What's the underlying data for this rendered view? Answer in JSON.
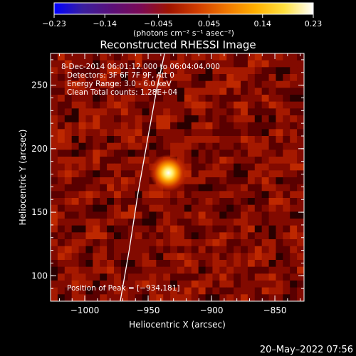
{
  "chart_data": {
    "type": "heatmap",
    "title": "Reconstructed RHESSI Image",
    "xlabel": "Heliocentric X (arcsec)",
    "ylabel": "Heliocentric Y (arcsec)",
    "xlim": [
      -1027,
      -827
    ],
    "ylim": [
      80,
      275
    ],
    "xticks": [
      -1000,
      -950,
      -900,
      -850
    ],
    "yticks": [
      100,
      150,
      200,
      250
    ],
    "xtick_labels": [
      "−1000",
      "−950",
      "−900",
      "−850"
    ],
    "ytick_labels": [
      "100",
      "150",
      "200",
      "250"
    ],
    "colorbar": {
      "ticks": [
        -0.23,
        -0.14,
        -0.045,
        0.045,
        0.14,
        0.23
      ],
      "tick_labels": [
        "−0.23",
        "−0.14",
        "−0.045",
        "0.045",
        "0.14",
        "0.23"
      ],
      "unit_label": "(photons cm⁻² s⁻¹ asec⁻²)",
      "colors": [
        "#0000ff",
        "#3a1f9e",
        "#5a0f78",
        "#7a0a55",
        "#a01400",
        "#d23e00",
        "#f07800",
        "#ffb000",
        "#ffe040",
        "#ffffff"
      ]
    },
    "peak": {
      "x": -934,
      "y": 181,
      "value": 0.23
    },
    "limb_curve": {
      "x": [
        -972,
        -965,
        -958,
        -950,
        -943,
        -937
      ],
      "y": [
        80,
        120,
        165,
        210,
        248,
        275
      ]
    },
    "annotations": [
      " 8-Dec-2014 06:01:12.000 to 06:04:04.000",
      "Detectors: 3F 6F 7F 9F, Att 0",
      "Energy Range: 3.0 - 6.0 keV",
      "Clean    Total counts: 1.28E+04"
    ],
    "peak_label": "Position of Peak = [−934,181]"
  },
  "footer": {
    "timestamp": "20–May–2022 07:56"
  }
}
